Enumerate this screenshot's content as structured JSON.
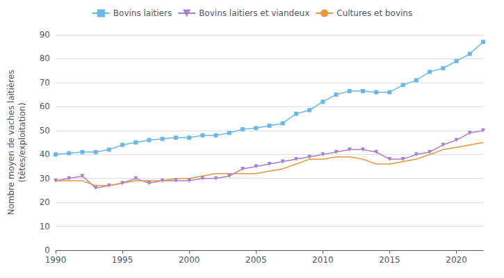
{
  "chart_data": {
    "type": "line",
    "ylabel": "Nombre moyen de vaches laitières\n(têtes/exploitation)",
    "x": [
      1990,
      1991,
      1992,
      1993,
      1994,
      1995,
      1996,
      1997,
      1998,
      1999,
      2000,
      2001,
      2002,
      2003,
      2004,
      2005,
      2006,
      2007,
      2008,
      2009,
      2010,
      2011,
      2012,
      2013,
      2014,
      2015,
      2016,
      2017,
      2018,
      2019,
      2020,
      2021,
      2022
    ],
    "series": [
      {
        "name": "Bovins laitiers",
        "color": "#6bb8e8",
        "marker": "square",
        "values": [
          40,
          40.5,
          41,
          41,
          42,
          44,
          45,
          46,
          46.5,
          47,
          47,
          48,
          48,
          49,
          50.5,
          51,
          52,
          53,
          57,
          58.5,
          62,
          65,
          66.5,
          66.5,
          66,
          66,
          69,
          71,
          74.5,
          76,
          79,
          82,
          87
        ]
      },
      {
        "name": "Bovins laitiers et viandeux",
        "color": "#a87ecf",
        "marker": "triangle-down",
        "values": [
          29,
          30,
          31,
          26,
          27,
          28,
          30,
          28,
          29,
          29,
          29,
          30,
          30,
          31,
          34,
          35,
          36,
          37,
          38,
          39,
          40,
          41,
          42,
          42,
          41,
          38,
          38,
          40,
          41,
          44,
          46,
          49,
          50
        ]
      },
      {
        "name": "Cultures et bovins",
        "color": "#e8963a",
        "marker": "none",
        "values": [
          29,
          29,
          29,
          27,
          27,
          28,
          29,
          29,
          29,
          30,
          30,
          31,
          32,
          32,
          32,
          32,
          33,
          34,
          36,
          38,
          38,
          39,
          39,
          38,
          36,
          36,
          37,
          38,
          40,
          42,
          43,
          44,
          45
        ]
      }
    ],
    "xlim": [
      1990,
      2022
    ],
    "xticks": [
      1990,
      1995,
      2000,
      2005,
      2010,
      2015,
      2020
    ],
    "ylim": [
      0,
      90
    ],
    "yticks": [
      0,
      10,
      20,
      30,
      40,
      50,
      60,
      70,
      80,
      90
    ],
    "grid": true,
    "legend": "top"
  }
}
